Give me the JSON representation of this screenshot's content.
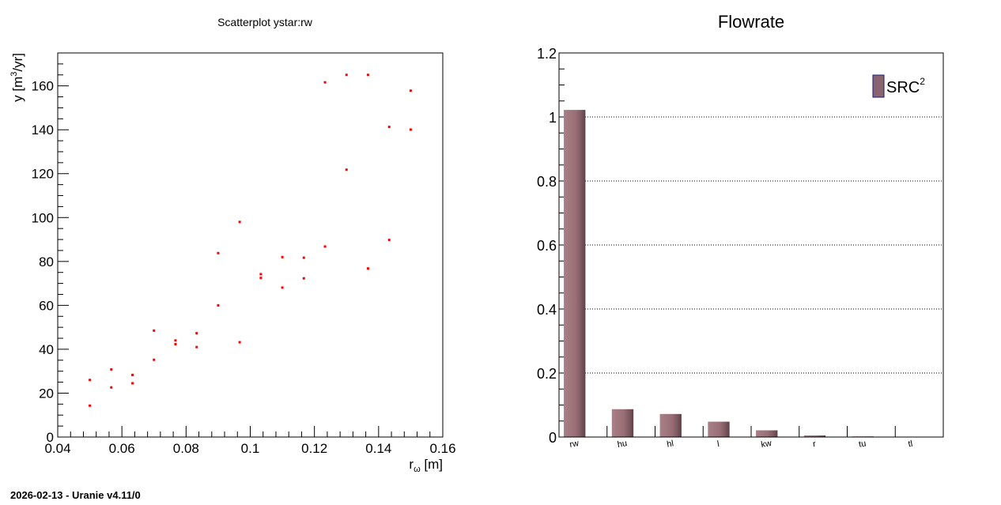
{
  "footer": "2026-02-13 - Uranie v4.11/0",
  "chart_data": [
    {
      "type": "scatter",
      "title": "Scatterplot ystar:rw",
      "xlabel_main": "r",
      "xlabel_sub": "ω",
      "xlabel_unit": " [m]",
      "ylabel_main": "y  [m",
      "ylabel_sup": "3",
      "ylabel_unit": "/yr]",
      "xlim": [
        0.04,
        0.16
      ],
      "ylim": [
        0,
        175
      ],
      "xticks": [
        0.04,
        0.06,
        0.08,
        0.1,
        0.12,
        0.14,
        0.16
      ],
      "xtick_labels": [
        "0.04",
        "0.06",
        "0.08",
        "0.1",
        "0.12",
        "0.14",
        "0.16"
      ],
      "yticks": [
        0,
        20,
        40,
        60,
        80,
        100,
        120,
        140,
        160
      ],
      "ytick_labels": [
        "0",
        "20",
        "40",
        "60",
        "80",
        "100",
        "120",
        "140",
        "160"
      ],
      "marker_color": "#ff0000",
      "points": [
        [
          0.05,
          26
        ],
        [
          0.05,
          14.3
        ],
        [
          0.0567,
          30.8
        ],
        [
          0.0567,
          22.6
        ],
        [
          0.0633,
          28.3
        ],
        [
          0.0633,
          24.5
        ],
        [
          0.07,
          48.5
        ],
        [
          0.07,
          35.2
        ],
        [
          0.0767,
          44
        ],
        [
          0.0767,
          42.3
        ],
        [
          0.0833,
          47.3
        ],
        [
          0.0833,
          41
        ],
        [
          0.09,
          83.8
        ],
        [
          0.09,
          60
        ],
        [
          0.0967,
          98
        ],
        [
          0.0967,
          43.2
        ],
        [
          0.1033,
          74.2
        ],
        [
          0.1033,
          72.5
        ],
        [
          0.11,
          82
        ],
        [
          0.11,
          68.1
        ],
        [
          0.1167,
          81.7
        ],
        [
          0.1167,
          72.3
        ],
        [
          0.1233,
          161.6
        ],
        [
          0.1233,
          86.8
        ],
        [
          0.13,
          165
        ],
        [
          0.13,
          121.8
        ],
        [
          0.1367,
          165
        ],
        [
          0.1367,
          76.8
        ],
        [
          0.1433,
          141.3
        ],
        [
          0.1433,
          89.8
        ],
        [
          0.15,
          157.8
        ],
        [
          0.15,
          140.1
        ]
      ]
    },
    {
      "type": "bar",
      "title": "Flowrate",
      "categories": [
        "rw",
        "hu",
        "hl",
        "l",
        "kw",
        "r",
        "tu",
        "tl"
      ],
      "series": [
        {
          "name_main": "SRC",
          "name_sup": "2",
          "values": [
            1.022,
            0.087,
            0.072,
            0.048,
            0.021,
            0.005,
            0.002,
            0.0005
          ],
          "color": "#9c6f77"
        }
      ],
      "ylim": [
        0,
        1.2
      ],
      "yticks": [
        0,
        0.2,
        0.4,
        0.6,
        0.8,
        1,
        1.2
      ],
      "ytick_labels": [
        "0",
        "0.2",
        "0.4",
        "0.6",
        "0.8",
        "1",
        "1.2"
      ],
      "grid_y": true,
      "legend_position": "top-right",
      "legend_fill": "#8a6470",
      "legend_border": "#1a1a7a"
    }
  ]
}
